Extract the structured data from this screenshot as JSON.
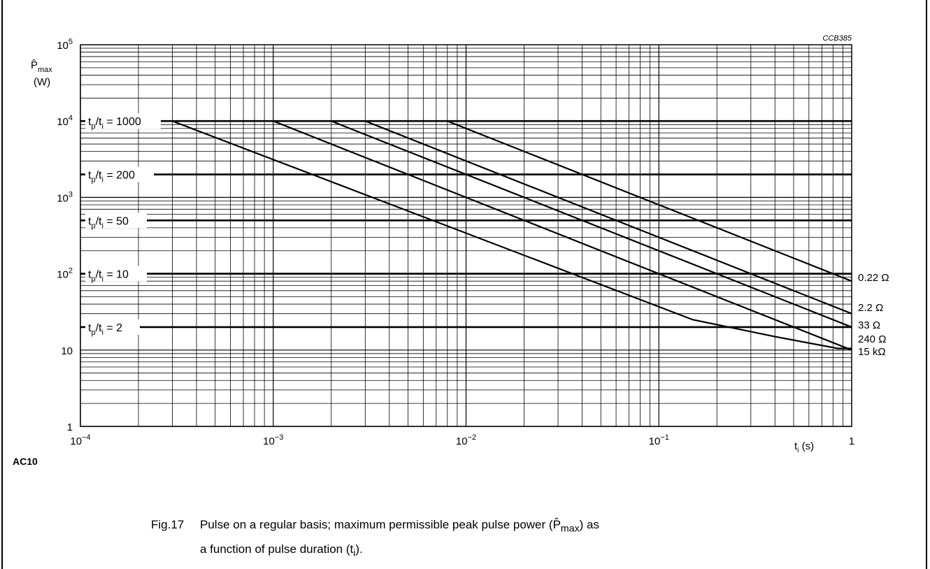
{
  "figure_code": "CCB385",
  "section_label": "AC10",
  "caption": {
    "number": "Fig.17",
    "line1_pre": "Pulse on a regular basis; maximum permissible peak pulse power (",
    "symbol": "P̂",
    "symbol_sub": "max",
    "line1_post": ") as",
    "line2_pre": "a function of pulse duration (t",
    "line2_sub": "i",
    "line2_post": ")."
  },
  "chart_data": {
    "type": "line",
    "xscale": "log",
    "yscale": "log",
    "xlim": [
      0.0001,
      1
    ],
    "ylim": [
      1,
      100000
    ],
    "grid": true,
    "y_axis_label": {
      "symbol": "P̂",
      "sub": "max",
      "unit": "(W)"
    },
    "x_axis_label": {
      "symbol": "t",
      "sub": "i",
      "unit": "(s)"
    },
    "x_ticks": [
      {
        "value": 0.0001,
        "base": "10",
        "exp": "−4"
      },
      {
        "value": 0.001,
        "base": "10",
        "exp": "−3"
      },
      {
        "value": 0.01,
        "base": "10",
        "exp": "−2"
      },
      {
        "value": 0.1,
        "base": "10",
        "exp": "−1"
      },
      {
        "value": 1,
        "base": "1",
        "exp": ""
      }
    ],
    "y_ticks": [
      {
        "value": 1,
        "base": "1",
        "exp": ""
      },
      {
        "value": 10,
        "base": "10",
        "exp": ""
      },
      {
        "value": 100,
        "base": "10",
        "exp": "2"
      },
      {
        "value": 1000,
        "base": "10",
        "exp": "3"
      },
      {
        "value": 10000,
        "base": "10",
        "exp": "4"
      },
      {
        "value": 100000,
        "base": "10",
        "exp": "5"
      }
    ],
    "duty_lines": [
      {
        "ratio": "1000",
        "y": 10000
      },
      {
        "ratio": "200",
        "y": 2000
      },
      {
        "ratio": "50",
        "y": 500
      },
      {
        "ratio": "10",
        "y": 100
      },
      {
        "ratio": "2",
        "y": 20
      }
    ],
    "series": [
      {
        "name": "0.22 Ω",
        "points": [
          [
            0.008,
            10000
          ],
          [
            1,
            80
          ]
        ]
      },
      {
        "name": "2.2 Ω",
        "points": [
          [
            0.003,
            10000
          ],
          [
            1,
            30
          ]
        ]
      },
      {
        "name": "33 Ω",
        "points": [
          [
            0.002,
            10000
          ],
          [
            1,
            20
          ]
        ]
      },
      {
        "name": "240 Ω",
        "points": [
          [
            0.001,
            10000
          ],
          [
            1,
            10
          ]
        ]
      },
      {
        "name": "15 kΩ",
        "points": [
          [
            0.0003,
            10000
          ],
          [
            0.15,
            25
          ],
          [
            0.4,
            15
          ],
          [
            0.85,
            10.5
          ],
          [
            1,
            10.5
          ]
        ]
      }
    ]
  }
}
